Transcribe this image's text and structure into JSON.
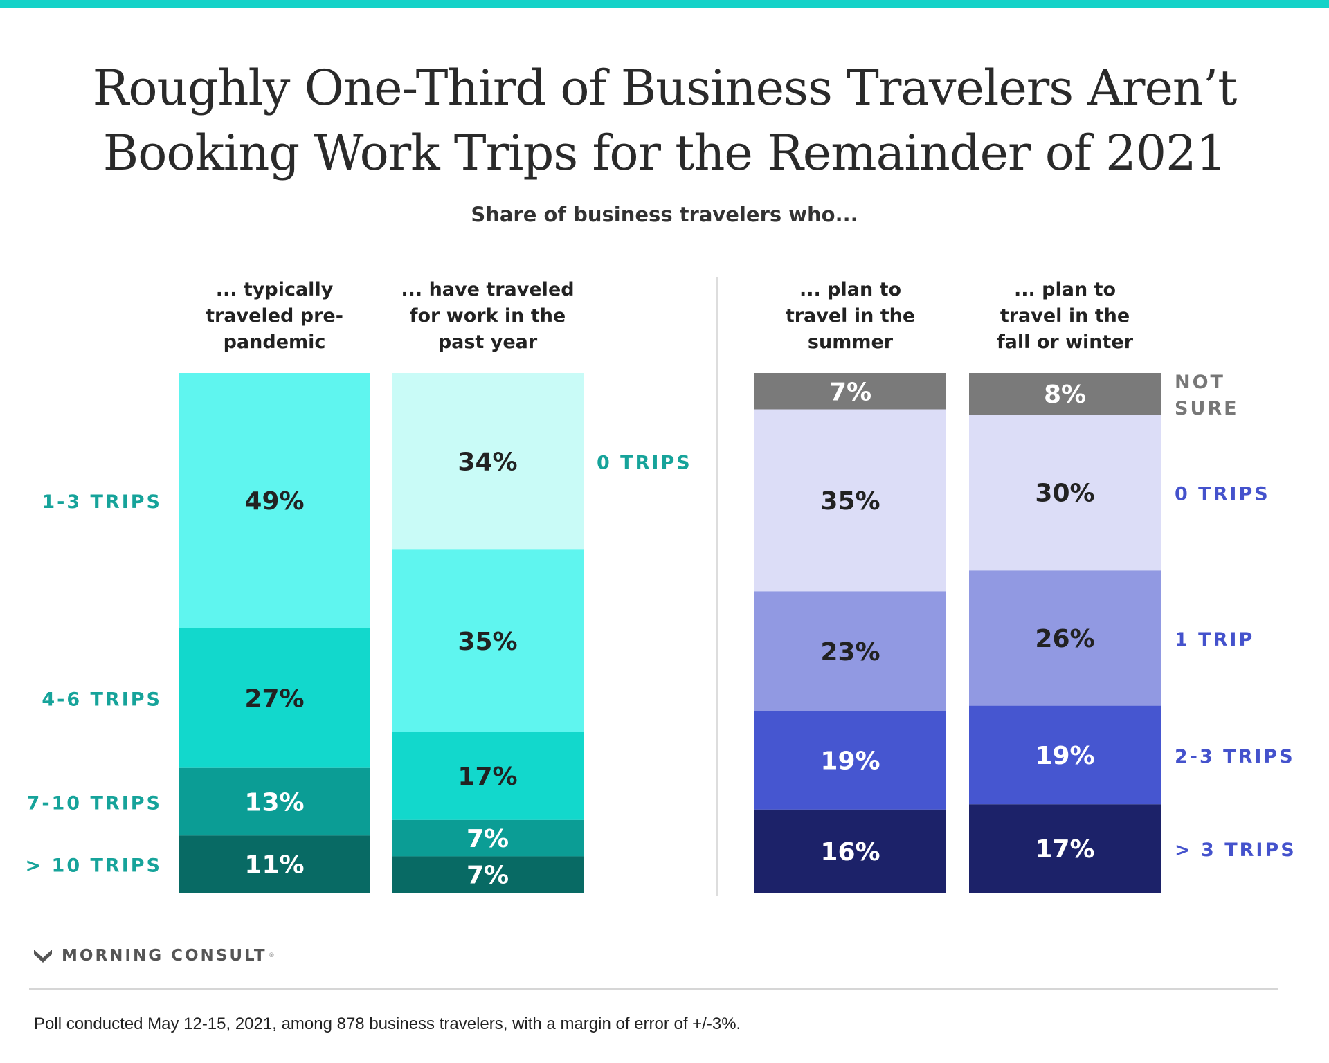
{
  "title_lines": [
    "Roughly One-Third of Business Travelers Aren’t",
    "Booking Work Trips for the Remainder of 2021"
  ],
  "subtitle": "Share of business travelers who...",
  "brand": {
    "name": "MORNING CONSULT",
    "trademark": "®"
  },
  "footnote": "Poll conducted May 12-15, 2021, among 878 business travelers, with a margin of error of +/-3%.",
  "colors": {
    "accent_strip": "#14d2c8",
    "teal_label": "#16a39a",
    "blue_label": "#4452cc",
    "gray_label": "#777777",
    "divider": "#dddddd"
  },
  "chart_data": {
    "type": "bar",
    "stacked": true,
    "normalized_to": 100,
    "unit": "%",
    "groups": [
      {
        "columns": [
          {
            "header": [
              "... typically",
              "traveled pre-",
              "pandemic"
            ],
            "segments": [
              {
                "category": "1-3 TRIPS",
                "value": 49,
                "label": "49%",
                "color": "#5ff5ef",
                "text_color": "#222222"
              },
              {
                "category": "4-6 TRIPS",
                "value": 27,
                "label": "27%",
                "color": "#12d8cc",
                "text_color": "#222222"
              },
              {
                "category": "7-10 TRIPS",
                "value": 13,
                "label": "13%",
                "color": "#0b9d95",
                "text_color": "#ffffff"
              },
              {
                "category": "> 10 TRIPS",
                "value": 11,
                "label": "11%",
                "color": "#086a64",
                "text_color": "#ffffff"
              }
            ]
          },
          {
            "header": [
              "... have traveled",
              "for work in the",
              "past year"
            ],
            "segments": [
              {
                "category": "0 TRIPS",
                "value": 34,
                "label": "34%",
                "color": "#c9fbf7",
                "text_color": "#222222"
              },
              {
                "category": "1-3 TRIPS",
                "value": 35,
                "label": "35%",
                "color": "#5ff5ef",
                "text_color": "#222222"
              },
              {
                "category": "4-6 TRIPS",
                "value": 17,
                "label": "17%",
                "color": "#12d8cc",
                "text_color": "#222222"
              },
              {
                "category": "7-10 TRIPS",
                "value": 7,
                "label": "7%",
                "color": "#0b9d95",
                "text_color": "#ffffff"
              },
              {
                "category": "> 10 TRIPS",
                "value": 7,
                "label": "7%",
                "color": "#086a64",
                "text_color": "#ffffff"
              }
            ]
          }
        ],
        "legend_left": [
          "1-3 TRIPS",
          "4-6 TRIPS",
          "7-10 TRIPS",
          "> 10 TRIPS"
        ],
        "legend_right": [
          "0 TRIPS"
        ]
      },
      {
        "columns": [
          {
            "header": [
              "... plan to",
              "travel in the",
              "summer"
            ],
            "segments": [
              {
                "category": "NOT SURE",
                "value": 7,
                "label": "7%",
                "color": "#7a7a7a",
                "text_color": "#ffffff"
              },
              {
                "category": "0 TRIPS",
                "value": 35,
                "label": "35%",
                "color": "#dcddf7",
                "text_color": "#222222"
              },
              {
                "category": "1 TRIP",
                "value": 23,
                "label": "23%",
                "color": "#9199e2",
                "text_color": "#222222"
              },
              {
                "category": "2-3 TRIPS",
                "value": 19,
                "label": "19%",
                "color": "#4656d0",
                "text_color": "#ffffff"
              },
              {
                "category": "> 3 TRIPS",
                "value": 16,
                "label": "16%",
                "color": "#1c2269",
                "text_color": "#ffffff"
              }
            ]
          },
          {
            "header": [
              "... plan to",
              "travel in the",
              "fall or winter"
            ],
            "segments": [
              {
                "category": "NOT SURE",
                "value": 8,
                "label": "8%",
                "color": "#7a7a7a",
                "text_color": "#ffffff"
              },
              {
                "category": "0 TRIPS",
                "value": 30,
                "label": "30%",
                "color": "#dcddf7",
                "text_color": "#222222"
              },
              {
                "category": "1 TRIP",
                "value": 26,
                "label": "26%",
                "color": "#9199e2",
                "text_color": "#222222"
              },
              {
                "category": "2-3 TRIPS",
                "value": 19,
                "label": "19%",
                "color": "#4656d0",
                "text_color": "#ffffff"
              },
              {
                "category": "> 3 TRIPS",
                "value": 17,
                "label": "17%",
                "color": "#1c2269",
                "text_color": "#ffffff"
              }
            ]
          }
        ],
        "legend_right": [
          "NOT SURE",
          "0 TRIPS",
          "1 TRIP",
          "2-3 TRIPS",
          "> 3 TRIPS"
        ]
      }
    ]
  }
}
